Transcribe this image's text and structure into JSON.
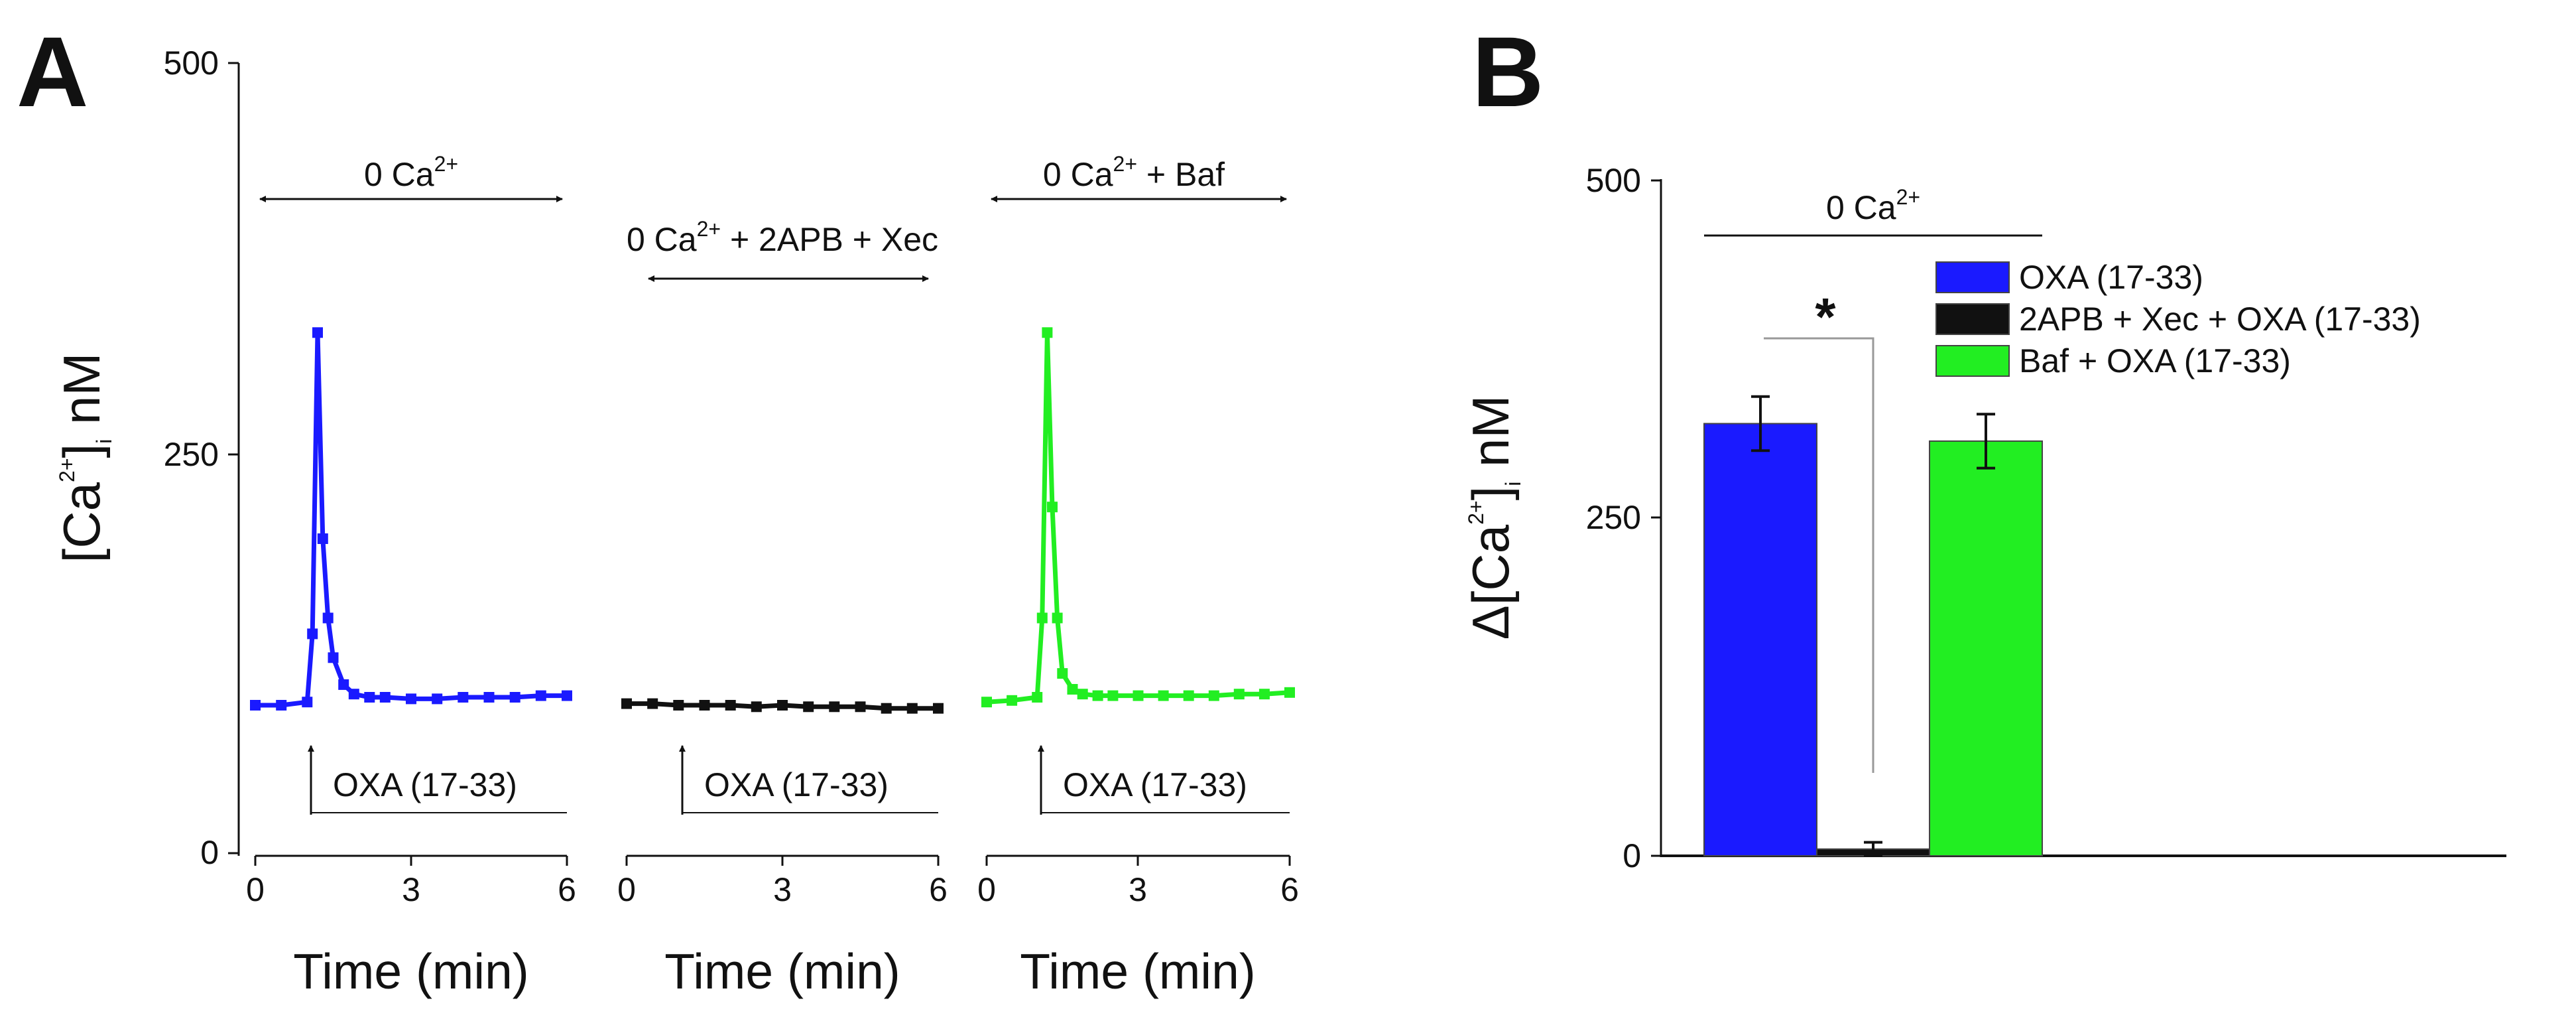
{
  "panel_a": {
    "letter": "A",
    "y_axis": {
      "label_prefix": "[Ca",
      "label_sup": "2+",
      "label_mid": "]",
      "label_sub": "i",
      "label_suffix": " nM",
      "ticks": [
        "0",
        "250",
        "500"
      ],
      "range": [
        0,
        500
      ]
    },
    "x_axis": {
      "label": "Time (min)",
      "ticks": [
        "0",
        "3",
        "6"
      ],
      "range": [
        0,
        6
      ]
    },
    "stimulus_label": "OXA (17-33)",
    "subplots": [
      {
        "condition": {
          "pre": "0 Ca",
          "sup": "2+",
          "post": ""
        },
        "color": "#1a1aff"
      },
      {
        "condition": {
          "pre": "0 Ca",
          "sup": "2+",
          "post": " + 2APB + Xec"
        },
        "color": "#111111"
      },
      {
        "condition": {
          "pre": "0 Ca",
          "sup": "2+",
          "post": " + Baf"
        },
        "color": "#22ee22"
      }
    ]
  },
  "panel_b": {
    "letter": "B",
    "y_axis": {
      "label_prefix": "Δ[Ca",
      "label_sup": "2+",
      "label_mid": "]",
      "label_sub": "i",
      "label_suffix": " nM",
      "ticks": [
        "0",
        "250",
        "500"
      ],
      "range": [
        0,
        500
      ]
    },
    "condition": {
      "pre": "0 Ca",
      "sup": "2+"
    },
    "significance": "*"
  },
  "chart_data": [
    {
      "type": "line",
      "title": "0 Ca2+",
      "xlabel": "Time (min)",
      "ylabel": "[Ca2+]i nM",
      "xlim": [
        0,
        6
      ],
      "ylim": [
        0,
        500
      ],
      "annotation": "OXA (17-33) at t = 1.1 min",
      "series": [
        {
          "name": "0 Ca2+",
          "color": "#1a1aff",
          "x": [
            0,
            0.5,
            1.0,
            1.1,
            1.2,
            1.3,
            1.4,
            1.5,
            1.7,
            1.9,
            2.2,
            2.5,
            3.0,
            3.5,
            4.0,
            4.5,
            5.0,
            5.5,
            6.0
          ],
          "y": [
            95,
            95,
            97,
            140,
            330,
            200,
            150,
            125,
            108,
            102,
            100,
            100,
            99,
            99,
            100,
            100,
            100,
            101,
            101
          ]
        }
      ]
    },
    {
      "type": "line",
      "title": "0 Ca2+ + 2APB + Xec",
      "xlabel": "Time (min)",
      "ylabel": "[Ca2+]i nM",
      "xlim": [
        0,
        6
      ],
      "ylim": [
        0,
        500
      ],
      "annotation": "OXA (17-33) at t = 1.1 min",
      "series": [
        {
          "name": "0 Ca2+ + 2APB + Xec",
          "color": "#111111",
          "x": [
            0,
            0.5,
            1.0,
            1.5,
            2.0,
            2.5,
            3.0,
            3.5,
            4.0,
            4.5,
            5.0,
            5.5,
            6.0
          ],
          "y": [
            96,
            96,
            95,
            95,
            95,
            94,
            95,
            94,
            94,
            94,
            93,
            93,
            93
          ]
        }
      ]
    },
    {
      "type": "line",
      "title": "0 Ca2+ + Baf",
      "xlabel": "Time (min)",
      "ylabel": "[Ca2+]i nM",
      "xlim": [
        0,
        6
      ],
      "ylim": [
        0,
        500
      ],
      "annotation": "OXA (17-33) at t = 1.1 min",
      "series": [
        {
          "name": "0 Ca2+ + Baf",
          "color": "#22ee22",
          "x": [
            0,
            0.5,
            1.0,
            1.1,
            1.2,
            1.3,
            1.4,
            1.5,
            1.7,
            1.9,
            2.2,
            2.5,
            3.0,
            3.5,
            4.0,
            4.5,
            5.0,
            5.5,
            6.0
          ],
          "y": [
            97,
            98,
            100,
            150,
            330,
            220,
            150,
            115,
            105,
            102,
            101,
            101,
            101,
            101,
            101,
            101,
            102,
            102,
            103
          ]
        }
      ]
    },
    {
      "type": "bar",
      "title": "0 Ca2+",
      "xlabel": "",
      "ylabel": "Δ[Ca2+]i nM",
      "ylim": [
        0,
        500
      ],
      "categories": [
        "OXA (17-33)",
        "2APB + Xec + OXA (17-33)",
        "Baf + OXA (17-33)"
      ],
      "values": [
        320,
        5,
        307
      ],
      "errors": [
        20,
        5,
        20
      ],
      "colors": [
        "#1a1aff",
        "#111111",
        "#22ee22"
      ],
      "legend": [
        "OXA (17-33)",
        "2APB + Xec + OXA (17-33)",
        "Baf + OXA (17-33)"
      ],
      "legend_position": "top-right",
      "annotations": [
        "* significant difference between OXA (17-33) and 2APB + Xec + OXA (17-33)"
      ]
    }
  ]
}
